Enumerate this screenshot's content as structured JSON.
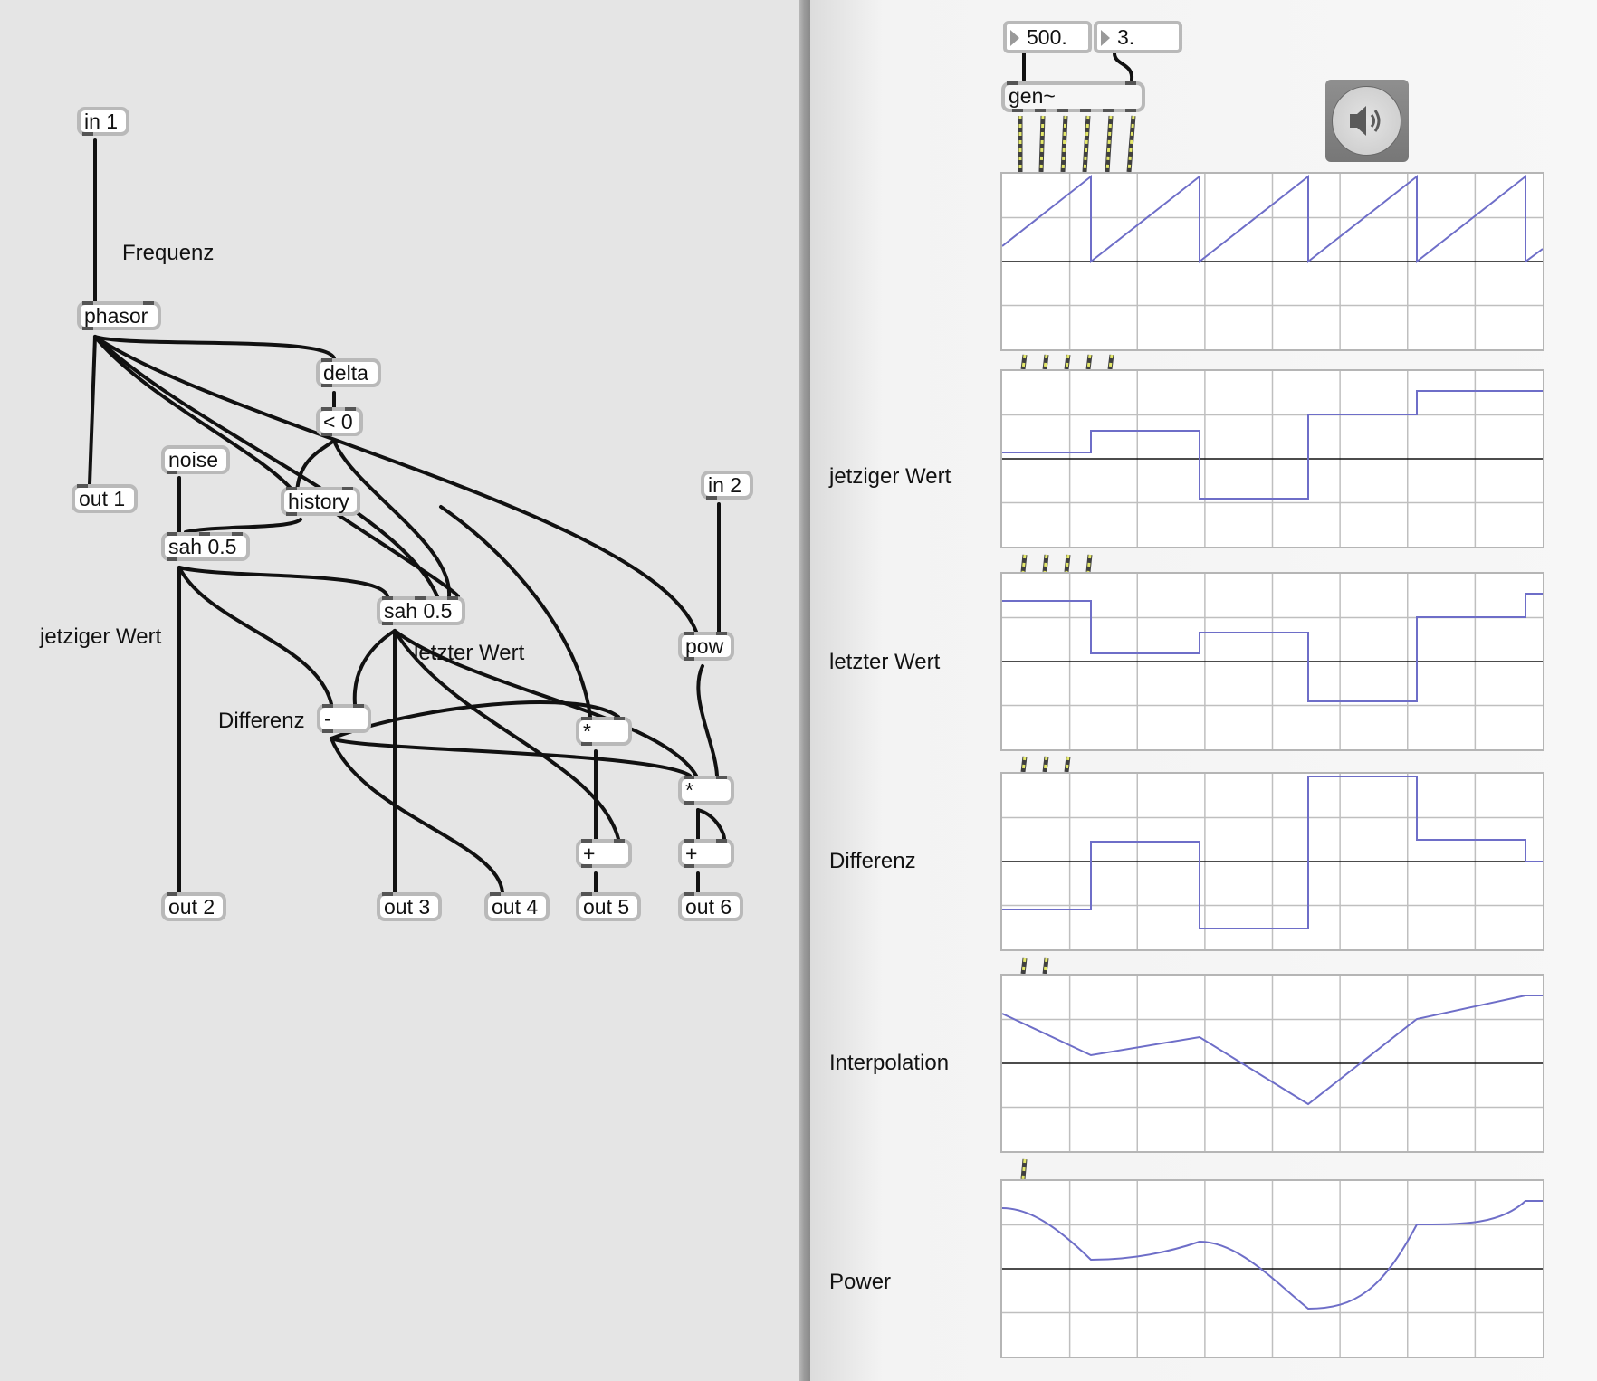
{
  "gen_patch": {
    "objects": [
      {
        "id": "in1",
        "text": "in 1"
      },
      {
        "id": "phasor",
        "text": "phasor"
      },
      {
        "id": "delta",
        "text": "delta"
      },
      {
        "id": "lt0",
        "text": "< 0"
      },
      {
        "id": "noise",
        "text": "noise"
      },
      {
        "id": "history",
        "text": "history"
      },
      {
        "id": "out1",
        "text": "out 1"
      },
      {
        "id": "in2",
        "text": "in 2"
      },
      {
        "id": "sah1",
        "text": "sah 0.5"
      },
      {
        "id": "sah2",
        "text": "sah 0.5"
      },
      {
        "id": "pow",
        "text": "pow"
      },
      {
        "id": "minus",
        "text": "-"
      },
      {
        "id": "mul1",
        "text": "*"
      },
      {
        "id": "mul2",
        "text": "*"
      },
      {
        "id": "plus1",
        "text": "+"
      },
      {
        "id": "plus2",
        "text": "+"
      },
      {
        "id": "out2",
        "text": "out 2"
      },
      {
        "id": "out3",
        "text": "out 3"
      },
      {
        "id": "out4",
        "text": "out 4"
      },
      {
        "id": "out5",
        "text": "out 5"
      },
      {
        "id": "out6",
        "text": "out 6"
      }
    ],
    "comments": [
      "Frequenz",
      "jetziger Wert",
      "letzter Wert",
      "Differenz"
    ]
  },
  "main_patch": {
    "number_boxes": [
      "500.",
      "3."
    ],
    "gen_object": "gen~",
    "scope_labels": [
      "jetziger Wert",
      "letzter Wert",
      "Differenz",
      "Interpolation",
      "Power"
    ],
    "speaker": "speaker-icon"
  },
  "colors": {
    "signal": "#6e6ec8",
    "cord": "#111111",
    "patch_bg": "#e5e5e5"
  }
}
